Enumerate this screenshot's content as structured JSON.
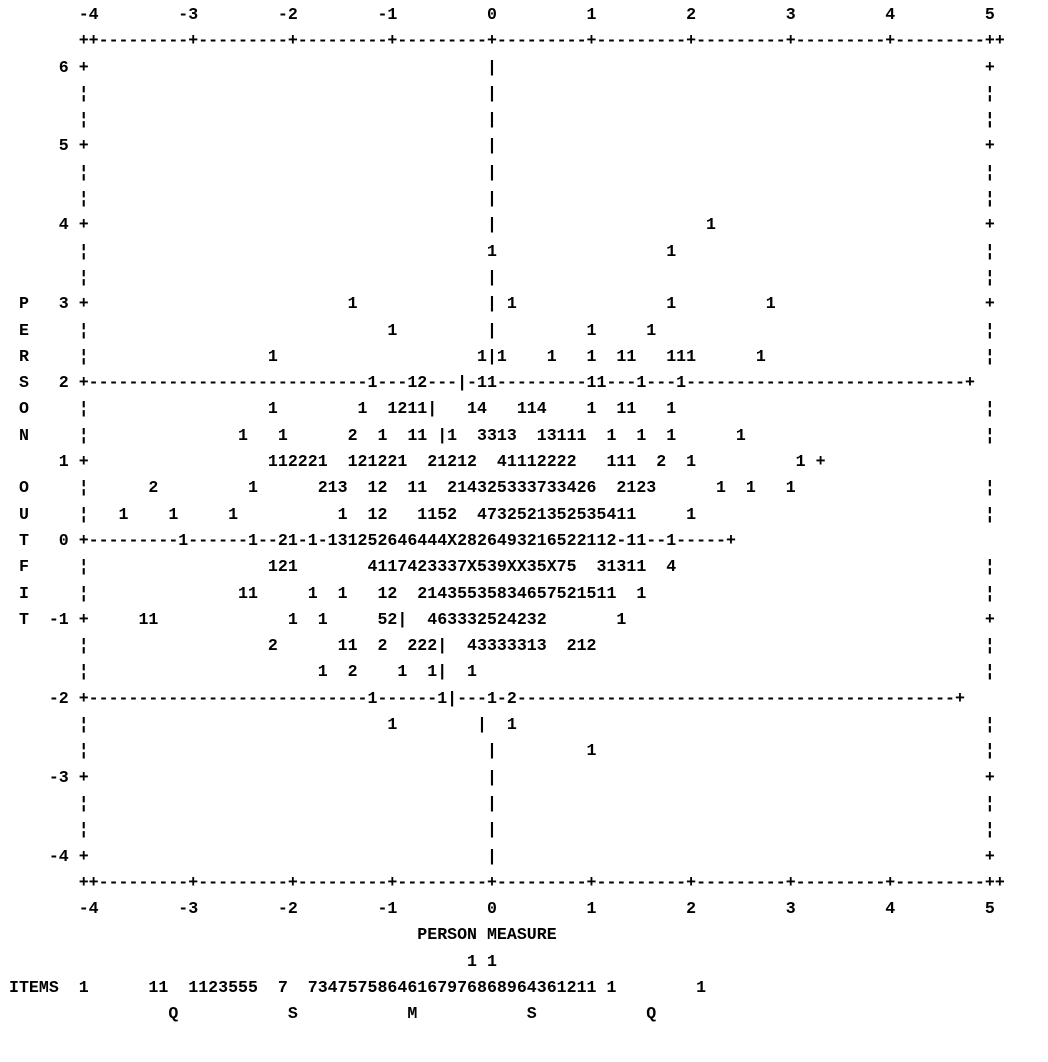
{
  "chart_data": {
    "type": "scatter",
    "render": "ascii-text-plot",
    "xlabel": "PERSON MEASURE",
    "ylabel": "PERSON OUTFIT",
    "xlim": [
      -4,
      5
    ],
    "ylim": [
      -4,
      6
    ],
    "x_ticks": [
      "-4",
      "-3",
      "-2",
      "-1",
      "0",
      "1",
      "2",
      "3",
      "4",
      "5"
    ],
    "y_ticks": [
      "6",
      "5",
      "4",
      "3",
      "2",
      "1",
      "0",
      "-1",
      "-2",
      "-3",
      "-4"
    ],
    "items_label": "ITEMS",
    "plot_lines": [
      "       -4        -3        -2        -1         0         1         2         3         4         5",
      "       ++---------+---------+---------+---------+---------+---------+---------+---------+---------++",
      "     6 +                                        |                                                 +",
      "       ¦                                        |                                                 ¦",
      "       ¦                                        |                                                 ¦",
      "     5 +                                        |                                                 +",
      "       ¦                                        |                                                 ¦",
      "       ¦                                        |                                                 ¦",
      "     4 +                                        |                     1                           +",
      "       ¦                                        1                 1                               ¦",
      "       ¦                                        |                                                 ¦",
      " P   3 +                          1             | 1               1         1                     +",
      " E     ¦                              1         |         1     1                                 ¦",
      " R     ¦                  1                    1|1    1   1  11   111      1                      ¦",
      " S   2 +----------------------------1---12---|-11---------11---1---1----------------------------+",
      " O     ¦                  1        1  1211|   14   114    1  11   1                               ¦",
      " N     ¦               1   1      2  1  11 |1  3313  13111  1  1  1      1                        ¦",
      "     1 +                  112221  121221  21212  41112222   111  2  1          1 +",
      " O     ¦      2         1      213  12  11  214325333733426  2123      1  1   1                   ¦",
      " U     ¦   1    1     1          1  12   1152  4732521352535411     1                             ¦",
      " T   0 +---------1------1--21-1-131252646444X2826493216522112-11--1-----+",
      " F     ¦                  121       4117423337X539XX35X75  31311  4                               ¦",
      " I     ¦               11     1  1   12  21435535834657521511  1                                  ¦",
      " T  -1 +     11             1  1     52|  463332524232       1                                    +",
      "       ¦                  2      11  2  222|  43333313  212                                       ¦",
      "       ¦                       1  2    1  1|  1                                                   ¦",
      "    -2 +----------------------------1------1|---1-2--------------------------------------------+",
      "       ¦                              1        |  1                                               ¦",
      "       ¦                                        |         1                                       ¦",
      "    -3 +                                        |                                                 +",
      "       ¦                                        |                                                 ¦",
      "       ¦                                        |                                                 ¦",
      "    -4 +                                        |                                                 +",
      "       ++---------+---------+---------+---------+---------+---------+---------+---------+---------++",
      "       -4        -3        -2        -1         0         1         2         3         4         5",
      "                                         PERSON MEASURE",
      "                                              1 1",
      "ITEMS  1      11  1123555  7  73475758646167976868964361211 1        1",
      "                Q           S           M           S           Q"
    ]
  }
}
